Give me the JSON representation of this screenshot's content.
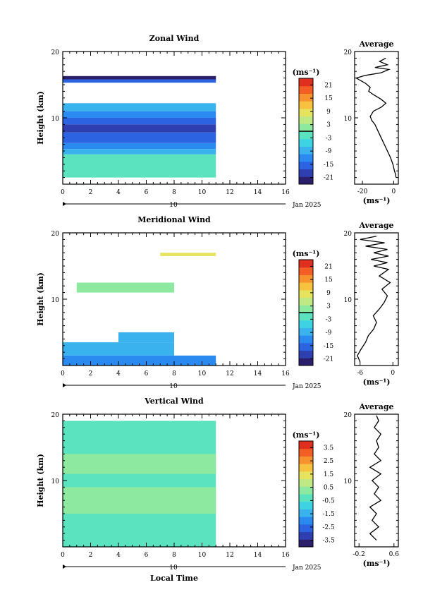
{
  "colors": {
    "colormap": [
      "#2b1f6b",
      "#2f3fb0",
      "#2c63e0",
      "#2a8af0",
      "#39b2ee",
      "#3ed3e3",
      "#5be3c0",
      "#8ee9a0",
      "#bfe985",
      "#e6e35e",
      "#f6c23f",
      "#f7932e",
      "#f35e25",
      "#e02f1f"
    ],
    "frame": "#000000"
  },
  "chart_data": [
    {
      "id": "zonal",
      "type": "heatmap",
      "title": "Zonal Wind",
      "ylabel": "Height (km)",
      "x_ticks": [
        "0",
        "2",
        "4",
        "6",
        "8",
        "10",
        "12",
        "14",
        "16"
      ],
      "y_ticks": [
        "20",
        "10"
      ],
      "xlim": [
        0,
        16
      ],
      "ylim": [
        0,
        20
      ],
      "date_marker": "10",
      "date_label": "Jan 2025",
      "colorbar": {
        "unit": "(ms⁻¹)",
        "ticks": [
          "21",
          "15",
          "9",
          "3",
          "-3",
          "-9",
          "-15",
          "-21"
        ],
        "range": [
          -24,
          24
        ],
        "zero_line": 0
      },
      "profile": {
        "title": "Average",
        "x_ticks": [
          "-20",
          "0"
        ],
        "xlabel": "(ms⁻¹)",
        "xlim": [
          -25,
          3
        ],
        "points": [
          [
            1.5,
            1
          ],
          [
            1.2,
            1.5
          ],
          [
            0.5,
            2
          ],
          [
            -0.5,
            3
          ],
          [
            -2,
            4
          ],
          [
            -4,
            5
          ],
          [
            -6,
            6
          ],
          [
            -8,
            7
          ],
          [
            -10,
            8
          ],
          [
            -12,
            9
          ],
          [
            -14,
            9.6
          ],
          [
            -15,
            10.2
          ],
          [
            -13,
            11
          ],
          [
            -8,
            11.6
          ],
          [
            -5,
            12.2
          ],
          [
            -8,
            12.8
          ],
          [
            -13,
            13.5
          ],
          [
            -16,
            14
          ],
          [
            -15,
            14.6
          ],
          [
            -18,
            15.2
          ],
          [
            -21,
            15.6
          ],
          [
            -24,
            16
          ],
          [
            -18,
            16.4
          ],
          [
            -8,
            16.8
          ],
          [
            -3,
            17.3
          ],
          [
            -12,
            17.6
          ],
          [
            -4,
            18
          ],
          [
            -9,
            18.5
          ],
          [
            -5,
            19
          ]
        ]
      },
      "cells": [
        {
          "x0": 0,
          "x1": 11,
          "y0": 1,
          "y1": 4.5,
          "v": -3
        },
        {
          "x0": 0,
          "x1": 11,
          "y0": 4.5,
          "y1": 5.3,
          "v": -7
        },
        {
          "x0": 0,
          "x1": 11,
          "y0": 5.3,
          "y1": 6.2,
          "v": -11
        },
        {
          "x0": 0,
          "x1": 11,
          "y0": 6.2,
          "y1": 7.8,
          "v": -15
        },
        {
          "x0": 0,
          "x1": 11,
          "y0": 7.8,
          "y1": 9.0,
          "v": -19
        },
        {
          "x0": 0,
          "x1": 11,
          "y0": 9.0,
          "y1": 10.0,
          "v": -17
        },
        {
          "x0": 0,
          "x1": 11,
          "y0": 10.0,
          "y1": 11.0,
          "v": -13
        },
        {
          "x0": 0,
          "x1": 11,
          "y0": 11.0,
          "y1": 12.2,
          "v": -7
        },
        {
          "x0": 0,
          "x1": 11,
          "y0": 15.3,
          "y1": 15.8,
          "v": -14
        },
        {
          "x0": 0,
          "x1": 11,
          "y0": 15.8,
          "y1": 16.3,
          "v": -22
        }
      ]
    },
    {
      "id": "meridional",
      "type": "heatmap",
      "title": "Meridional Wind",
      "ylabel": "Height (km)",
      "x_ticks": [
        "0",
        "2",
        "4",
        "6",
        "8",
        "10",
        "12",
        "14",
        "16"
      ],
      "y_ticks": [
        "20",
        "10"
      ],
      "xlim": [
        0,
        16
      ],
      "ylim": [
        0,
        20
      ],
      "date_marker": "10",
      "date_label": "Jan 2025",
      "colorbar": {
        "unit": "(ms⁻¹)",
        "ticks": [
          "21",
          "15",
          "9",
          "3",
          "-3",
          "-9",
          "-15",
          "-21"
        ],
        "range": [
          -24,
          24
        ],
        "zero_line": 0
      },
      "profile": {
        "title": "Average",
        "x_ticks": [
          "-6",
          "0"
        ],
        "xlabel": "(ms⁻¹)",
        "xlim": [
          -7,
          1
        ],
        "points": [
          [
            -6,
            0.5
          ],
          [
            -6.5,
            1.5
          ],
          [
            -5.8,
            2.5
          ],
          [
            -5,
            3.5
          ],
          [
            -4.5,
            4.5
          ],
          [
            -3.5,
            5.5
          ],
          [
            -3,
            6.5
          ],
          [
            -3.6,
            7.5
          ],
          [
            -2.5,
            8.5
          ],
          [
            -1.6,
            9.5
          ],
          [
            -1,
            10.5
          ],
          [
            -2,
            11.5
          ],
          [
            -0.5,
            12.5
          ],
          [
            -2.5,
            13.5
          ],
          [
            -0.8,
            14.5
          ],
          [
            -3.5,
            15
          ],
          [
            -1,
            15.5
          ],
          [
            -4,
            16
          ],
          [
            -0.8,
            16.5
          ],
          [
            -3.5,
            17
          ],
          [
            -1,
            17.5
          ],
          [
            -5,
            18
          ],
          [
            -1.5,
            18.5
          ],
          [
            -6,
            19
          ],
          [
            -3,
            19.5
          ]
        ]
      },
      "cells": [
        {
          "x0": 0,
          "x1": 11,
          "y0": 0,
          "y1": 1.5,
          "v": -12
        },
        {
          "x0": 0,
          "x1": 8,
          "y0": 1.5,
          "y1": 3.5,
          "v": -7
        },
        {
          "x0": 4,
          "x1": 8,
          "y0": 3.5,
          "y1": 5,
          "v": -9
        },
        {
          "x0": 1,
          "x1": 8,
          "y0": 11,
          "y1": 12.5,
          "v": 3
        },
        {
          "x0": 7,
          "x1": 11,
          "y0": 16.5,
          "y1": 17,
          "v": 7
        }
      ]
    },
    {
      "id": "vertical",
      "type": "heatmap",
      "title": "Vertical Wind",
      "ylabel": "Height (km)",
      "xlabel": "Local Time",
      "x_ticks": [
        "0",
        "2",
        "4",
        "6",
        "8",
        "10",
        "12",
        "14",
        "16"
      ],
      "y_ticks": [
        "20",
        "10"
      ],
      "xlim": [
        0,
        16
      ],
      "ylim": [
        0,
        20
      ],
      "date_marker": "10",
      "date_label": "Jan 2025",
      "colorbar": {
        "unit": "(ms⁻¹)",
        "ticks": [
          "3.5",
          "2.5",
          "1.5",
          "0.5",
          "-0.5",
          "-1.5",
          "-2.5",
          "-3.5"
        ],
        "range": [
          -4,
          4
        ],
        "zero_line": null
      },
      "profile": {
        "title": "Average",
        "x_ticks": [
          "-0.2",
          "0.6"
        ],
        "xlabel": "(ms⁻¹)",
        "xlim": [
          -0.3,
          0.7
        ],
        "points": [
          [
            0.2,
            1
          ],
          [
            0.05,
            2
          ],
          [
            0.25,
            3
          ],
          [
            0.1,
            4
          ],
          [
            0.2,
            5
          ],
          [
            0.05,
            6
          ],
          [
            0.3,
            7
          ],
          [
            0.15,
            8
          ],
          [
            0.25,
            9
          ],
          [
            0.1,
            10
          ],
          [
            0.3,
            11
          ],
          [
            0.05,
            12
          ],
          [
            0.3,
            13
          ],
          [
            0.15,
            14
          ],
          [
            0.25,
            15
          ],
          [
            0.2,
            16
          ],
          [
            0.3,
            17
          ],
          [
            0.15,
            18
          ],
          [
            0.25,
            19
          ],
          [
            0.2,
            19.8
          ]
        ]
      },
      "cells": [
        {
          "x0": 0,
          "x1": 11,
          "y0": 0,
          "y1": 19,
          "v": -0.4
        },
        {
          "x0": 0,
          "x1": 11,
          "y0": 5,
          "y1": 9,
          "v": 0.3
        },
        {
          "x0": 0,
          "x1": 11,
          "y0": 11,
          "y1": 14,
          "v": 0.1
        }
      ]
    }
  ]
}
